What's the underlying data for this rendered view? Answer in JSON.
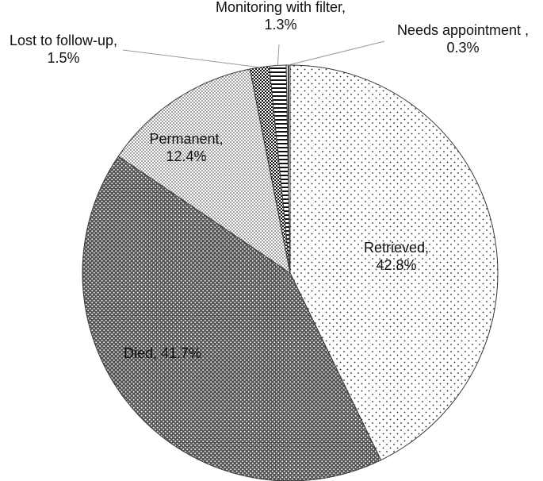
{
  "chart_data": {
    "type": "pie",
    "title": "",
    "slices": [
      {
        "name": "Retrieved",
        "value": 42.8,
        "label_line1": "Retrieved,",
        "label_line2": "42.8%",
        "pattern": "sparse-dots"
      },
      {
        "name": "Died",
        "value": 41.7,
        "label_line1": "Died, 41.7%",
        "label_line2": "",
        "pattern": "dense-dots"
      },
      {
        "name": "Permanent",
        "value": 12.4,
        "label_line1": "Permanent,",
        "label_line2": "12.4%",
        "pattern": "medium-dots"
      },
      {
        "name": "Lost to follow-up",
        "value": 1.5,
        "label_line1": "Lost to follow-up,",
        "label_line2": "1.5%",
        "pattern": "checker"
      },
      {
        "name": "Monitoring with filter",
        "value": 1.3,
        "label_line1": "Monitoring with filter,",
        "label_line2": "1.3%",
        "pattern": "horizontal-lines"
      },
      {
        "name": "Needs appointment",
        "value": 0.3,
        "label_line1": "Needs appointment ,",
        "label_line2": "0.3%",
        "pattern": "vertical-lines"
      }
    ],
    "start_angle_deg": 0,
    "direction": "clockwise",
    "legend": "none",
    "colors": {
      "stroke": "#3a3a3a",
      "fill": "#ffffff",
      "pattern": "#222222"
    }
  }
}
